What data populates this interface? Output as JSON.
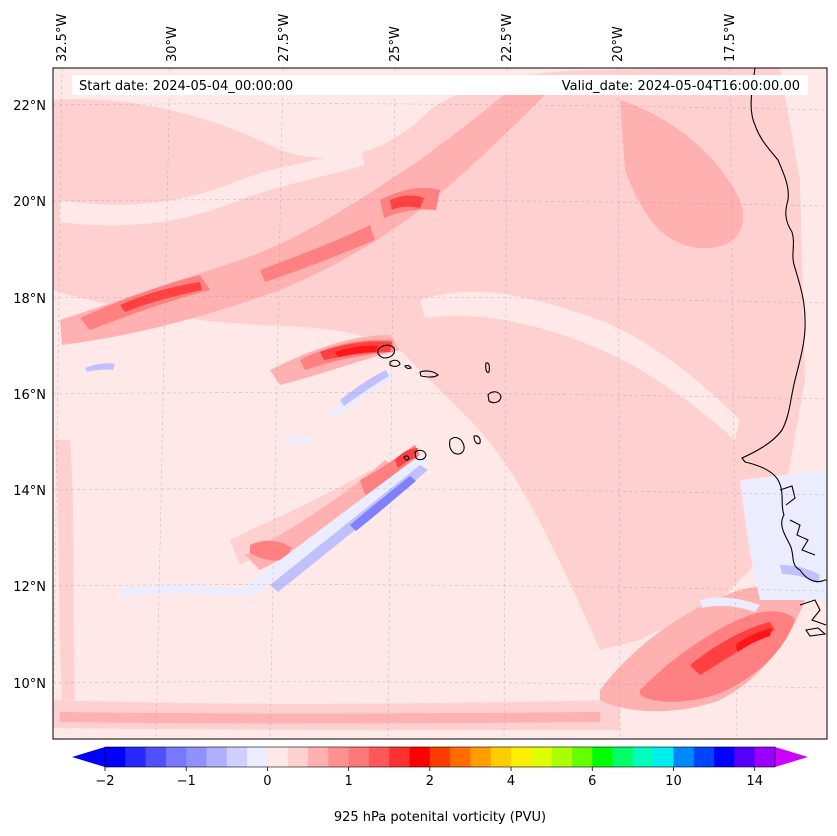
{
  "annotations": {
    "start_date": "Start date: 2024-05-04_00:00:00",
    "valid_date": "Valid_date: 2024-05-04T16:00:00.00"
  },
  "longitude_labels": [
    "32.5°W",
    "30°W",
    "27.5°W",
    "25°W",
    "22.5°W",
    "20°W",
    "17.5°W"
  ],
  "latitude_labels": [
    "22°N",
    "20°N",
    "18°N",
    "16°N",
    "14°N",
    "12°N",
    "10°N"
  ],
  "colorbar": {
    "label": "925 hPa potenital vorticity (PVU)",
    "tick_labels": [
      "−2",
      "−1",
      "0",
      "1",
      "2",
      "4",
      "6",
      "10",
      "14"
    ],
    "tick_values": [
      -2,
      -1,
      0,
      1,
      2,
      4,
      6,
      10,
      14
    ],
    "colors": [
      "#0000ff",
      "#2828ff",
      "#5050ff",
      "#7878ff",
      "#9090ff",
      "#b0b0ff",
      "#d0d0ff",
      "#ececff",
      "#ffe8e8",
      "#ffd0d0",
      "#ffb0b0",
      "#ff9090",
      "#ff7878",
      "#ff5858",
      "#ff3030",
      "#ff0000",
      "#ff3c00",
      "#ff6c00",
      "#ff9c00",
      "#ffcc00",
      "#ffee00",
      "#ddff00",
      "#aaff00",
      "#66ff00",
      "#00ff00",
      "#00ff66",
      "#00ffbb",
      "#00eeee",
      "#0088ff",
      "#0044ff",
      "#0000ff",
      "#5500ff",
      "#9900ff"
    ],
    "extend_low_color": "#0000ff",
    "extend_high_color": "#cc00ff"
  },
  "map_colors": {
    "background": "#ffe8e8",
    "light": "#ffd0d0",
    "medium": "#ffb0b0",
    "strong": "#ff8080",
    "intense": "#ff4040",
    "peak": "#ff1515",
    "negative_light": "#ececff",
    "negative_medium": "#c0c0ff",
    "negative_strong": "#8080ff",
    "coastline": "#000000"
  }
}
